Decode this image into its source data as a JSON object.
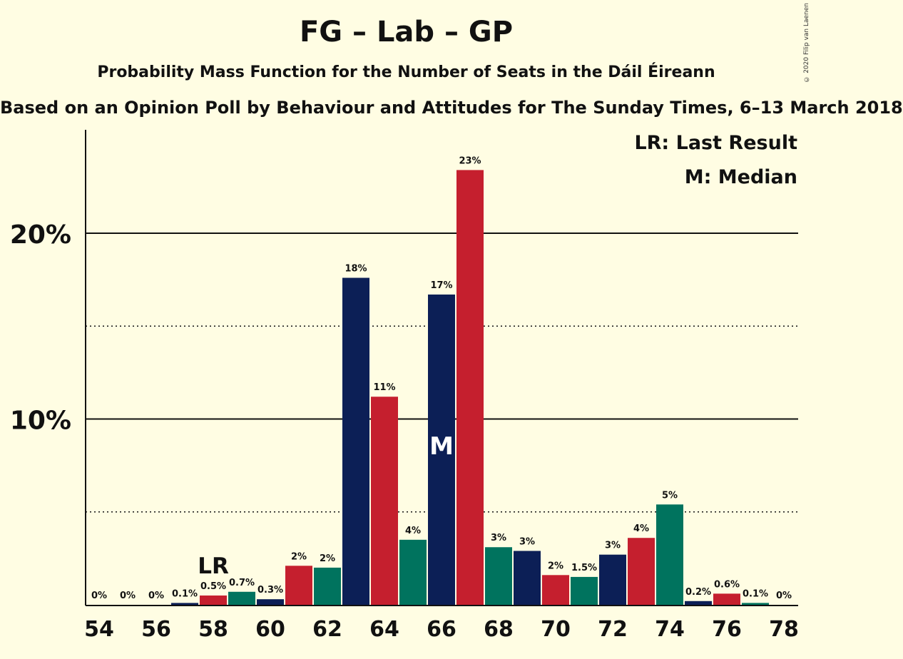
{
  "title": "FG – Lab – GP",
  "subtitle": "Probability Mass Function for the Number of Seats in the Dáil Éireann",
  "subsubtitle": "Based on an Opinion Poll by Behaviour and Attitudes for The Sunday Times, 6–13 March 2018",
  "copyright": "© 2020 Filip van Laenen",
  "legend": {
    "last_result": "LR: Last Result",
    "median": "M: Median"
  },
  "colors": {
    "background": "#fffde3",
    "navy": "#0c1f56",
    "red": "#c51f2e",
    "green": "#00735e"
  },
  "chart_data": {
    "type": "bar",
    "x": [
      54,
      55,
      56,
      57,
      58,
      59,
      60,
      61,
      62,
      63,
      64,
      65,
      66,
      67,
      68,
      69,
      70,
      71,
      72,
      73,
      74,
      75,
      76,
      77,
      78
    ],
    "values": [
      0,
      0,
      0,
      0.1,
      0.5,
      0.7,
      0.3,
      2.1,
      2.0,
      17.6,
      11.2,
      3.5,
      16.7,
      23.4,
      3.1,
      2.9,
      1.6,
      1.5,
      2.7,
      3.6,
      5.4,
      0.2,
      0.6,
      0.1,
      0
    ],
    "value_labels": [
      "0%",
      "0%",
      "0%",
      "0.1%",
      "0.5%",
      "0.7%",
      "0.3%",
      "2%",
      "2%",
      "18%",
      "11%",
      "4%",
      "17%",
      "23%",
      "3%",
      "3%",
      "2%",
      "1.5%",
      "3%",
      "4%",
      "5%",
      "0.2%",
      "0.6%",
      "0.1%",
      "0%"
    ],
    "bar_colors": [
      "#0c1f56",
      "#c51f2e",
      "#00735e",
      "#0c1f56",
      "#c51f2e",
      "#00735e",
      "#0c1f56",
      "#c51f2e",
      "#00735e",
      "#0c1f56",
      "#c51f2e",
      "#00735e",
      "#0c1f56",
      "#c51f2e",
      "#00735e",
      "#0c1f56",
      "#c51f2e",
      "#00735e",
      "#0c1f56",
      "#c51f2e",
      "#00735e",
      "#0c1f56",
      "#c51f2e",
      "#00735e",
      "#0c1f56"
    ],
    "x_tick_labels": [
      "54",
      "56",
      "58",
      "60",
      "62",
      "64",
      "66",
      "68",
      "70",
      "72",
      "74",
      "76",
      "78"
    ],
    "y_tick_labels": [
      "10%",
      "20%"
    ],
    "ylim": [
      0,
      25.5
    ],
    "major_gridlines": [
      10,
      20
    ],
    "minor_gridlines": [
      5,
      15
    ],
    "last_result_seat": 58,
    "last_result_marker": "LR",
    "median_seat": 66,
    "median_marker": "M"
  }
}
